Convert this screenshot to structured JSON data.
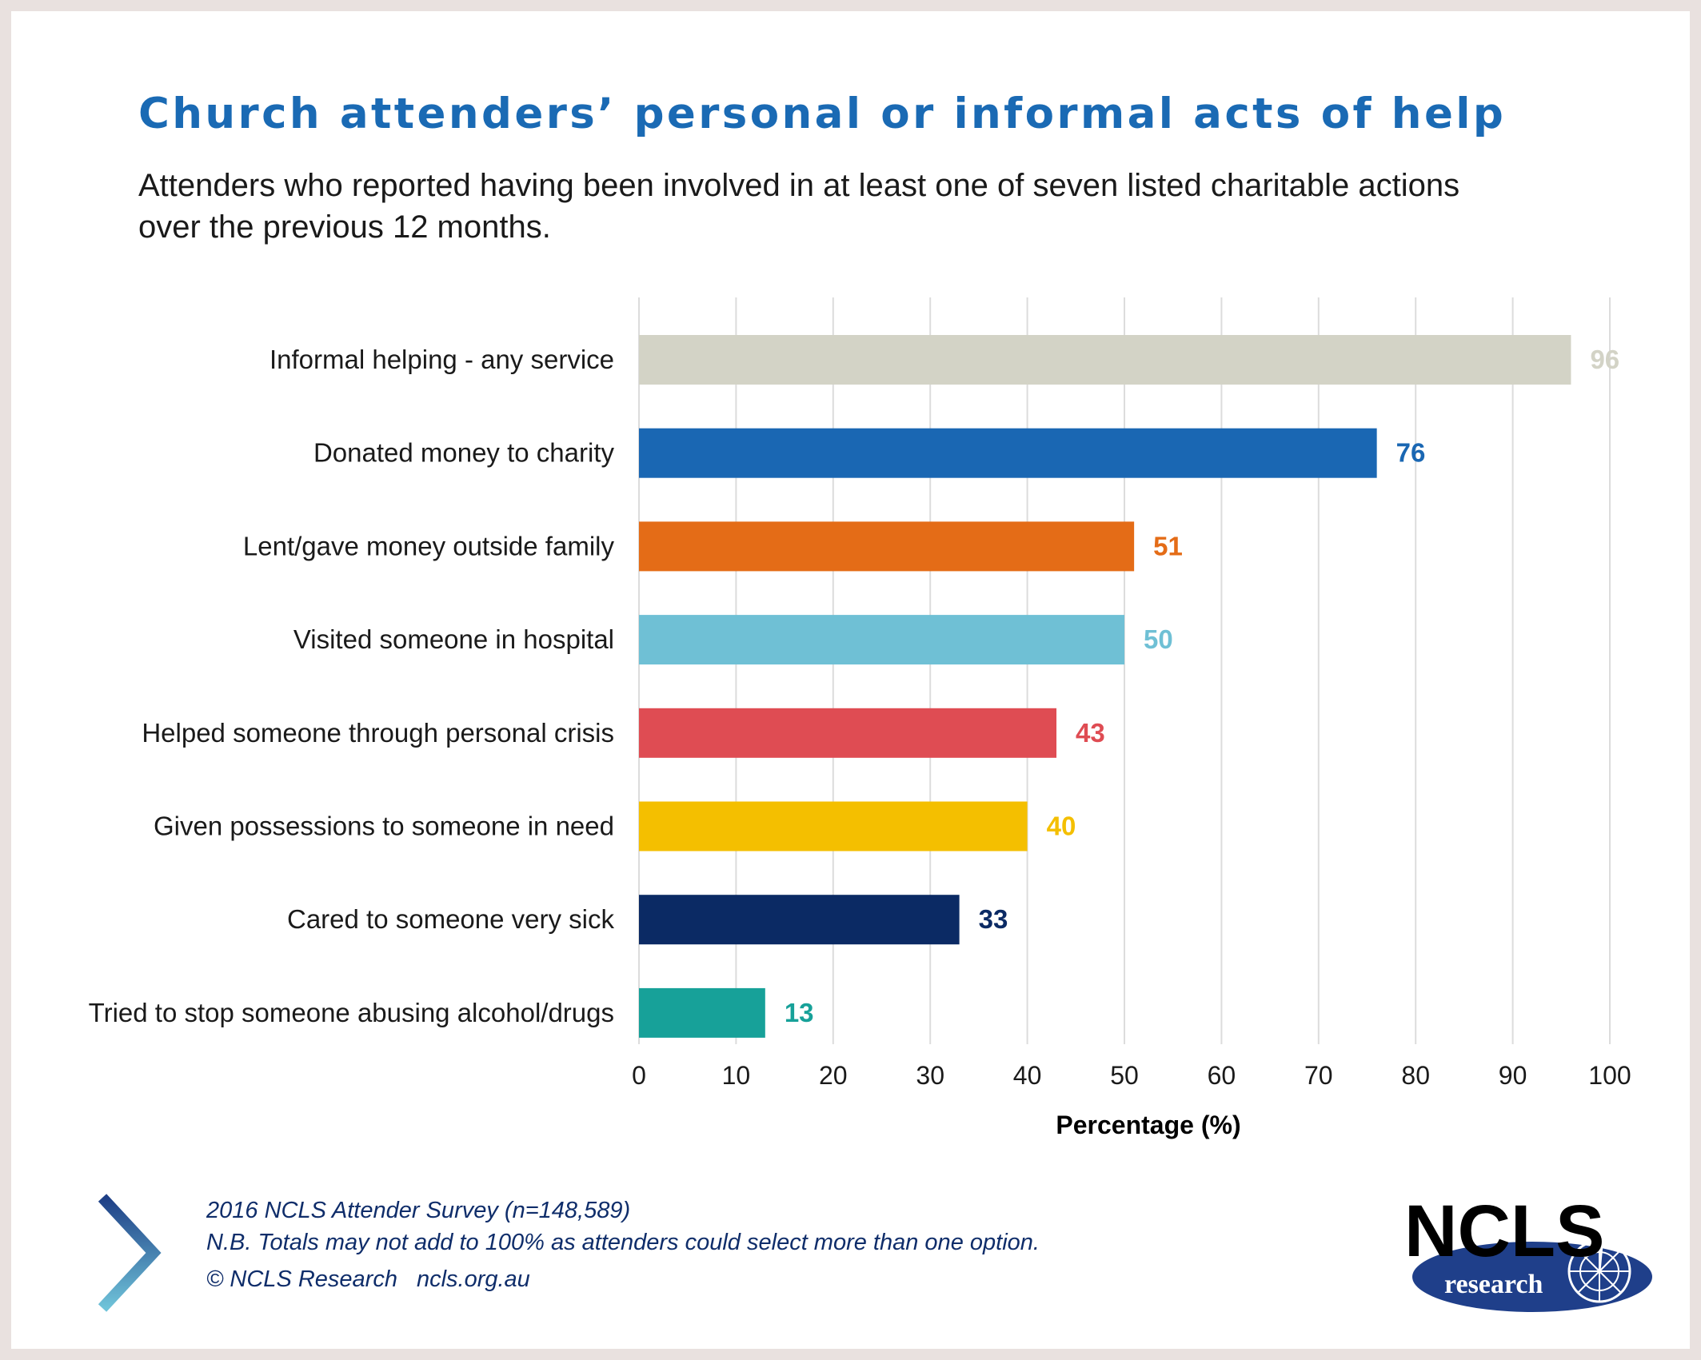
{
  "header": {
    "title": "Church attenders’ personal or informal acts of help",
    "subtitle": "Attenders who reported having been involved in at least one of seven listed charitable actions over the previous 12 months."
  },
  "footer": {
    "source_line": "2016 NCLS Attender Survey (n=148,589)",
    "note_line": "N.B. Totals may not add to 100% as attenders could select more than one option.",
    "copyright": "© NCLS Research",
    "website": "ncls.org.au"
  },
  "logo": {
    "wordmark": "NCLS",
    "tagline": "research",
    "colors": {
      "text": "#000000",
      "oval": "#1f3f8a"
    }
  },
  "decor": {
    "chevron-icon": {
      "colors": [
        "#1e3f86",
        "#6fc3d9"
      ]
    }
  },
  "chart_data": {
    "type": "bar",
    "orientation": "horizontal",
    "categories": [
      "Informal helping - any service",
      "Donated money to charity",
      "Lent/gave money outside family",
      "Visited someone in hospital",
      "Helped someone through personal crisis",
      "Given possessions to someone in need",
      "Cared to someone very sick",
      "Tried to stop someone abusing alcohol/drugs"
    ],
    "values": [
      96,
      76,
      51,
      50,
      43,
      40,
      33,
      13
    ],
    "colors": [
      "#d3d3c6",
      "#1a67b3",
      "#e46c17",
      "#6fc0d5",
      "#df4c53",
      "#f4bf00",
      "#0b2a64",
      "#17a199"
    ],
    "xlabel": "Percentage (%)",
    "ylabel": "",
    "xlim": [
      0,
      100
    ],
    "xticks": [
      0,
      10,
      20,
      30,
      40,
      50,
      60,
      70,
      80,
      90,
      100
    ],
    "grid": true,
    "data_labels": true
  }
}
